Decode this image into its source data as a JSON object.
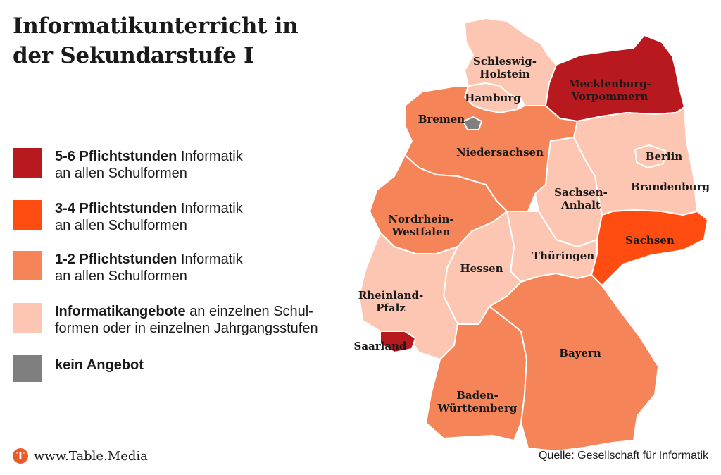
{
  "title": {
    "line1": "Informatikunterricht in",
    "line2": "der Sekundarstufe I"
  },
  "colors": {
    "dark_red": "#b8191e",
    "orange": "#ff4d12",
    "medium": "#f58559",
    "light": "#fcc6b2",
    "gray": "#7f7f7f"
  },
  "legend": [
    {
      "bold": "5-6 Pflichtstunden",
      "rest": " Informatik",
      "line2": "an allen Schulformen",
      "color": "#b8191e"
    },
    {
      "bold": "3-4 Pflichtstunden",
      "rest": " Informatik",
      "line2": "an allen Schulformen",
      "color": "#ff4d12"
    },
    {
      "bold": "1-2 Pflichtstunden",
      "rest": " Informatik",
      "line2": "an allen Schulformen",
      "color": "#f58559"
    },
    {
      "bold": "Informatikangebote",
      "rest": " an einzelnen Schul-",
      "line2": "formen oder in einzelnen Jahrgangsstufen",
      "color": "#fcc6b2"
    },
    {
      "bold": "kein Angebot",
      "rest": "",
      "line2": "",
      "color": "#7f7f7f"
    }
  ],
  "states": {
    "schleswig_holstein": {
      "name1": "Schleswig-",
      "name2": "Holstein",
      "category": "light"
    },
    "hamburg": {
      "name1": "Hamburg",
      "category": "light"
    },
    "mecklenburg_vorpommern": {
      "name1": "Mecklenburg-",
      "name2": "Vorpommern",
      "category": "dark_red"
    },
    "bremen": {
      "name1": "Bremen",
      "category": "gray"
    },
    "niedersachsen": {
      "name1": "Niedersachsen",
      "category": "medium"
    },
    "berlin": {
      "name1": "Berlin",
      "category": "light"
    },
    "brandenburg": {
      "name1": "Brandenburg",
      "category": "light"
    },
    "sachsen_anhalt": {
      "name1": "Sachsen-",
      "name2": "Anhalt",
      "category": "light"
    },
    "nordrhein_westfalen": {
      "name1": "Nordrhein-",
      "name2": "Westfalen",
      "category": "medium"
    },
    "sachsen": {
      "name1": "Sachsen",
      "category": "orange"
    },
    "hessen": {
      "name1": "Hessen",
      "category": "light"
    },
    "thueringen": {
      "name1": "Thüringen",
      "category": "light"
    },
    "rheinland_pfalz": {
      "name1": "Rheinland-",
      "name2": "Pfalz",
      "category": "light"
    },
    "saarland": {
      "name1": "Saarland",
      "category": "dark_red"
    },
    "bayern": {
      "name1": "Bayern",
      "category": "medium"
    },
    "baden_wuerttemberg": {
      "name1": "Baden-",
      "name2": "Württemberg",
      "category": "medium"
    }
  },
  "footer": {
    "brand_letter": "T",
    "brand": "www.Table.Media",
    "source": "Quelle: Gesellschaft für Informatik"
  }
}
